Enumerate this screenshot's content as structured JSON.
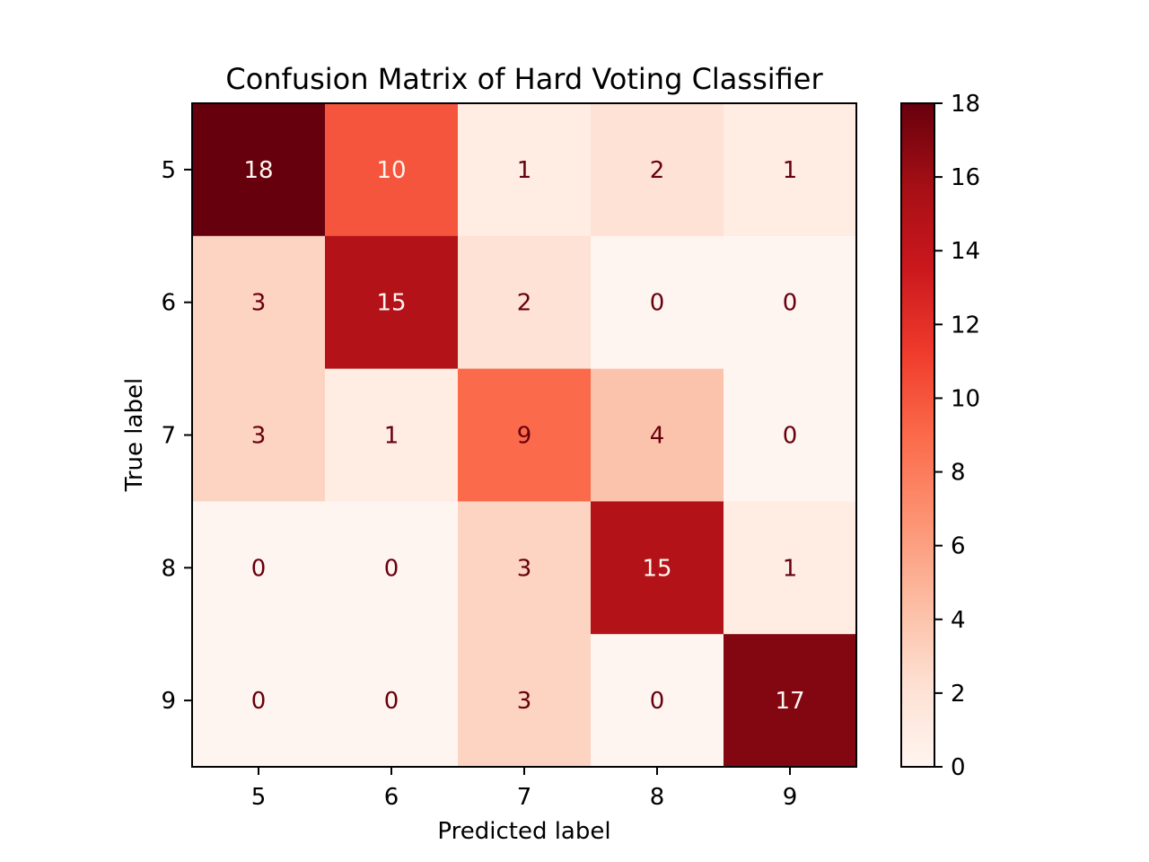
{
  "chart_data": {
    "type": "heatmap",
    "title": "Confusion Matrix of Hard Voting Classifier",
    "xlabel": "Predicted label",
    "ylabel": "True label",
    "x_categories": [
      "5",
      "6",
      "7",
      "8",
      "9"
    ],
    "y_categories": [
      "5",
      "6",
      "7",
      "8",
      "9"
    ],
    "values": [
      [
        18,
        10,
        1,
        2,
        1
      ],
      [
        3,
        15,
        2,
        0,
        0
      ],
      [
        3,
        1,
        9,
        4,
        0
      ],
      [
        0,
        0,
        3,
        15,
        1
      ],
      [
        0,
        0,
        3,
        0,
        17
      ]
    ],
    "colorbar": {
      "range": [
        0,
        18
      ],
      "ticks": [
        0,
        2,
        4,
        6,
        8,
        10,
        12,
        14,
        16,
        18
      ],
      "colormap": "Reds"
    },
    "grid": false
  }
}
